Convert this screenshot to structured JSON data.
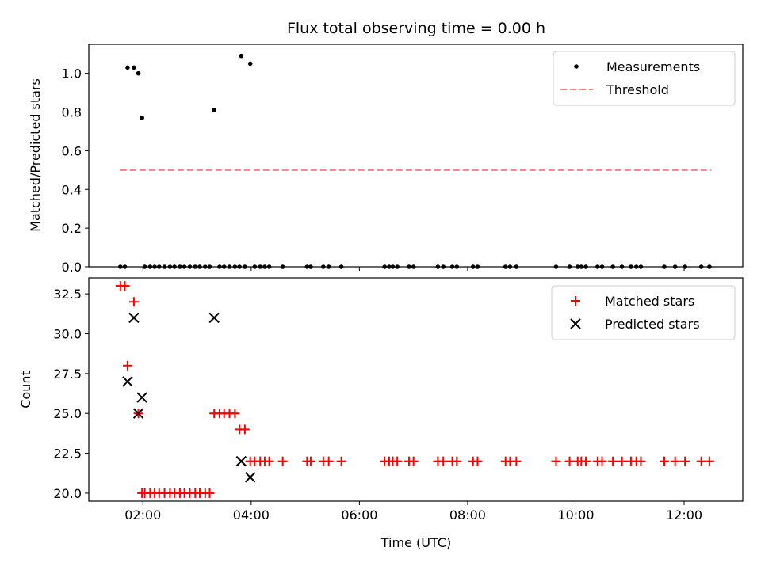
{
  "chart_data": [
    {
      "type": "scatter",
      "title": "Flux total observing time = 0.00 h",
      "xlabel": "",
      "ylabel": "Matched/Predicted stars",
      "xlim": [
        "01:00",
        "13:05"
      ],
      "ylim": [
        0,
        1.15
      ],
      "yticks": [
        "0.0",
        "0.2",
        "0.4",
        "0.6",
        "0.8",
        "1.0"
      ],
      "grid": false,
      "legend_position": "top-right",
      "series": [
        {
          "name": "Measurements",
          "marker": "dot",
          "color": "#000000",
          "points": [
            {
              "x": "01:35",
              "y": 0
            },
            {
              "x": "01:40",
              "y": 0
            },
            {
              "x": "01:43",
              "y": 1.03
            },
            {
              "x": "01:50",
              "y": 1.03
            },
            {
              "x": "01:55",
              "y": 1.0
            },
            {
              "x": "01:59",
              "y": 0.77
            },
            {
              "x": "02:02",
              "y": 0
            },
            {
              "x": "02:08",
              "y": 0
            },
            {
              "x": "02:13",
              "y": 0
            },
            {
              "x": "02:18",
              "y": 0
            },
            {
              "x": "02:24",
              "y": 0
            },
            {
              "x": "02:30",
              "y": 0
            },
            {
              "x": "02:35",
              "y": 0
            },
            {
              "x": "02:41",
              "y": 0
            },
            {
              "x": "02:46",
              "y": 0
            },
            {
              "x": "02:52",
              "y": 0
            },
            {
              "x": "02:58",
              "y": 0
            },
            {
              "x": "03:03",
              "y": 0
            },
            {
              "x": "03:09",
              "y": 0
            },
            {
              "x": "03:14",
              "y": 0
            },
            {
              "x": "03:19",
              "y": 0.81
            },
            {
              "x": "03:25",
              "y": 0
            },
            {
              "x": "03:30",
              "y": 0
            },
            {
              "x": "03:36",
              "y": 0
            },
            {
              "x": "03:42",
              "y": 0
            },
            {
              "x": "03:47",
              "y": 0
            },
            {
              "x": "03:49",
              "y": 1.09
            },
            {
              "x": "03:53",
              "y": 0
            },
            {
              "x": "03:59",
              "y": 1.05
            },
            {
              "x": "04:04",
              "y": 0
            },
            {
              "x": "04:10",
              "y": 0
            },
            {
              "x": "04:15",
              "y": 0
            },
            {
              "x": "04:20",
              "y": 0
            },
            {
              "x": "04:35",
              "y": 0
            },
            {
              "x": "05:02",
              "y": 0
            },
            {
              "x": "05:06",
              "y": 0
            },
            {
              "x": "05:20",
              "y": 0
            },
            {
              "x": "05:26",
              "y": 0
            },
            {
              "x": "05:40",
              "y": 0
            },
            {
              "x": "06:28",
              "y": 0
            },
            {
              "x": "06:33",
              "y": 0
            },
            {
              "x": "06:37",
              "y": 0
            },
            {
              "x": "06:42",
              "y": 0
            },
            {
              "x": "06:55",
              "y": 0
            },
            {
              "x": "07:00",
              "y": 0
            },
            {
              "x": "07:27",
              "y": 0
            },
            {
              "x": "07:33",
              "y": 0
            },
            {
              "x": "07:43",
              "y": 0
            },
            {
              "x": "07:48",
              "y": 0
            },
            {
              "x": "08:06",
              "y": 0
            },
            {
              "x": "08:11",
              "y": 0
            },
            {
              "x": "08:42",
              "y": 0
            },
            {
              "x": "08:47",
              "y": 0
            },
            {
              "x": "08:54",
              "y": 0
            },
            {
              "x": "09:38",
              "y": 0
            },
            {
              "x": "09:53",
              "y": 0
            },
            {
              "x": "10:02",
              "y": 0
            },
            {
              "x": "10:06",
              "y": 0
            },
            {
              "x": "10:11",
              "y": 0
            },
            {
              "x": "10:24",
              "y": 0
            },
            {
              "x": "10:29",
              "y": 0
            },
            {
              "x": "10:41",
              "y": 0
            },
            {
              "x": "10:51",
              "y": 0
            },
            {
              "x": "11:01",
              "y": 0
            },
            {
              "x": "11:07",
              "y": 0
            },
            {
              "x": "11:12",
              "y": 0
            },
            {
              "x": "11:38",
              "y": 0
            },
            {
              "x": "11:50",
              "y": 0
            },
            {
              "x": "12:01",
              "y": 0
            },
            {
              "x": "12:19",
              "y": 0
            },
            {
              "x": "12:28",
              "y": 0
            }
          ]
        },
        {
          "name": "Threshold",
          "marker": "dashed-line",
          "color": "#ff7f7f",
          "points": [
            {
              "x": "01:35",
              "y": 0.5
            },
            {
              "x": "12:30",
              "y": 0.5
            }
          ]
        }
      ]
    },
    {
      "type": "scatter",
      "title": "",
      "xlabel": "Time (UTC)",
      "ylabel": "Count",
      "xlim": [
        "01:00",
        "13:05"
      ],
      "ylim": [
        19.5,
        33.5
      ],
      "xticks": [
        "02:00",
        "04:00",
        "06:00",
        "08:00",
        "10:00",
        "12:00"
      ],
      "yticks": [
        "20.0",
        "22.5",
        "25.0",
        "27.5",
        "30.0",
        "32.5"
      ],
      "grid": false,
      "legend_position": "top-right",
      "series": [
        {
          "name": "Matched stars",
          "marker": "plus",
          "color": "#ff0000",
          "points": [
            {
              "x": "01:35",
              "y": 33
            },
            {
              "x": "01:40",
              "y": 33
            },
            {
              "x": "01:43",
              "y": 28
            },
            {
              "x": "01:50",
              "y": 32
            },
            {
              "x": "01:55",
              "y": 25
            },
            {
              "x": "01:59",
              "y": 20
            },
            {
              "x": "02:02",
              "y": 20
            },
            {
              "x": "02:08",
              "y": 20
            },
            {
              "x": "02:13",
              "y": 20
            },
            {
              "x": "02:18",
              "y": 20
            },
            {
              "x": "02:24",
              "y": 20
            },
            {
              "x": "02:30",
              "y": 20
            },
            {
              "x": "02:35",
              "y": 20
            },
            {
              "x": "02:41",
              "y": 20
            },
            {
              "x": "02:46",
              "y": 20
            },
            {
              "x": "02:52",
              "y": 20
            },
            {
              "x": "02:58",
              "y": 20
            },
            {
              "x": "03:03",
              "y": 20
            },
            {
              "x": "03:09",
              "y": 20
            },
            {
              "x": "03:14",
              "y": 20
            },
            {
              "x": "03:19",
              "y": 25
            },
            {
              "x": "03:25",
              "y": 25
            },
            {
              "x": "03:30",
              "y": 25
            },
            {
              "x": "03:36",
              "y": 25
            },
            {
              "x": "03:42",
              "y": 25
            },
            {
              "x": "03:47",
              "y": 24
            },
            {
              "x": "03:53",
              "y": 24
            },
            {
              "x": "03:59",
              "y": 22
            },
            {
              "x": "04:04",
              "y": 22
            },
            {
              "x": "04:10",
              "y": 22
            },
            {
              "x": "04:15",
              "y": 22
            },
            {
              "x": "04:20",
              "y": 22
            },
            {
              "x": "04:35",
              "y": 22
            },
            {
              "x": "05:02",
              "y": 22
            },
            {
              "x": "05:06",
              "y": 22
            },
            {
              "x": "05:20",
              "y": 22
            },
            {
              "x": "05:26",
              "y": 22
            },
            {
              "x": "05:40",
              "y": 22
            },
            {
              "x": "06:28",
              "y": 22
            },
            {
              "x": "06:33",
              "y": 22
            },
            {
              "x": "06:37",
              "y": 22
            },
            {
              "x": "06:42",
              "y": 22
            },
            {
              "x": "06:55",
              "y": 22
            },
            {
              "x": "07:00",
              "y": 22
            },
            {
              "x": "07:27",
              "y": 22
            },
            {
              "x": "07:33",
              "y": 22
            },
            {
              "x": "07:43",
              "y": 22
            },
            {
              "x": "07:48",
              "y": 22
            },
            {
              "x": "08:06",
              "y": 22
            },
            {
              "x": "08:11",
              "y": 22
            },
            {
              "x": "08:42",
              "y": 22
            },
            {
              "x": "08:47",
              "y": 22
            },
            {
              "x": "08:54",
              "y": 22
            },
            {
              "x": "09:38",
              "y": 22
            },
            {
              "x": "09:53",
              "y": 22
            },
            {
              "x": "10:02",
              "y": 22
            },
            {
              "x": "10:06",
              "y": 22
            },
            {
              "x": "10:11",
              "y": 22
            },
            {
              "x": "10:24",
              "y": 22
            },
            {
              "x": "10:29",
              "y": 22
            },
            {
              "x": "10:41",
              "y": 22
            },
            {
              "x": "10:51",
              "y": 22
            },
            {
              "x": "11:01",
              "y": 22
            },
            {
              "x": "11:07",
              "y": 22
            },
            {
              "x": "11:12",
              "y": 22
            },
            {
              "x": "11:38",
              "y": 22
            },
            {
              "x": "11:50",
              "y": 22
            },
            {
              "x": "12:01",
              "y": 22
            },
            {
              "x": "12:19",
              "y": 22
            },
            {
              "x": "12:28",
              "y": 22
            }
          ]
        },
        {
          "name": "Predicted stars",
          "marker": "x",
          "color": "#000000",
          "points": [
            {
              "x": "01:43",
              "y": 27
            },
            {
              "x": "01:50",
              "y": 31
            },
            {
              "x": "01:55",
              "y": 25
            },
            {
              "x": "01:59",
              "y": 26
            },
            {
              "x": "03:19",
              "y": 31
            },
            {
              "x": "03:49",
              "y": 22
            },
            {
              "x": "03:59",
              "y": 21
            }
          ]
        }
      ]
    }
  ]
}
